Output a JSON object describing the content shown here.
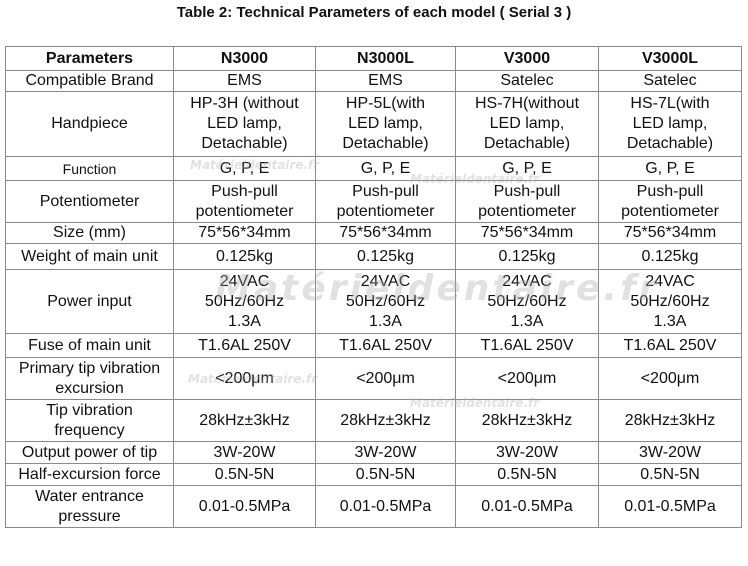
{
  "caption": "Table 2: Technical Parameters of each model ( Serial  3 )",
  "table": {
    "headers": [
      "Parameters",
      "N3000",
      "N3000L",
      "V3000",
      "V3000L"
    ],
    "rows": [
      {
        "param": "Compatible Brand",
        "cells": [
          "EMS",
          "EMS",
          "Satelec",
          "Satelec"
        ]
      },
      {
        "param": "Handpiece",
        "cells": [
          [
            "HP-3H (without",
            "LED lamp,",
            "Detachable)"
          ],
          [
            "HP-5L(with",
            "LED lamp,",
            "Detachable)"
          ],
          [
            "HS-7H(without",
            "LED lamp,",
            "Detachable)"
          ],
          [
            "HS-7L(with",
            "LED lamp,",
            "Detachable)"
          ]
        ]
      },
      {
        "param": "Function",
        "cells": [
          "G, P, E",
          "G, P, E",
          "G, P, E",
          "G, P, E"
        ]
      },
      {
        "param": "Potentiometer",
        "cells": [
          [
            "Push-pull",
            "potentiometer"
          ],
          [
            "Push-pull",
            "potentiometer"
          ],
          [
            "Push-pull",
            "potentiometer"
          ],
          [
            "Push-pull",
            "potentiometer"
          ]
        ]
      },
      {
        "param": "Size (mm)",
        "cells": [
          "75*56*34mm",
          "75*56*34mm",
          "75*56*34mm",
          "75*56*34mm"
        ]
      },
      {
        "param": "Weight of main unit",
        "cells": [
          "0.125kg",
          "0.125kg",
          "0.125kg",
          "0.125kg"
        ]
      },
      {
        "param": "Power input",
        "cells": [
          [
            "24VAC",
            "50Hz/60Hz",
            "1.3A"
          ],
          [
            "24VAC",
            "50Hz/60Hz",
            "1.3A"
          ],
          [
            "24VAC",
            "50Hz/60Hz",
            "1.3A"
          ],
          [
            "24VAC",
            "50Hz/60Hz",
            "1.3A"
          ]
        ]
      },
      {
        "param": "Fuse of main unit",
        "cells": [
          "T1.6AL 250V",
          "T1.6AL 250V",
          "T1.6AL 250V",
          "T1.6AL 250V"
        ]
      },
      {
        "param": [
          "Primary tip vibration",
          "excursion"
        ],
        "cells": [
          "<200μm",
          "<200μm",
          "<200μm",
          "<200μm"
        ]
      },
      {
        "param": [
          "Tip vibration",
          "frequency"
        ],
        "cells": [
          "28kHz±3kHz",
          "28kHz±3kHz",
          "28kHz±3kHz",
          "28kHz±3kHz"
        ]
      },
      {
        "param": "Output power of tip",
        "cells": [
          "3W-20W",
          "3W-20W",
          "3W-20W",
          "3W-20W"
        ]
      },
      {
        "param": "Half-excursion force",
        "cells": [
          "0.5N-5N",
          "0.5N-5N",
          "0.5N-5N",
          "0.5N-5N"
        ]
      },
      {
        "param": [
          "Water entrance",
          "pressure"
        ],
        "cells": [
          "0.01-0.5MPa",
          "0.01-0.5MPa",
          "0.01-0.5MPa",
          "0.01-0.5MPa"
        ]
      }
    ]
  },
  "watermark": "Matérieldentaire.fr"
}
